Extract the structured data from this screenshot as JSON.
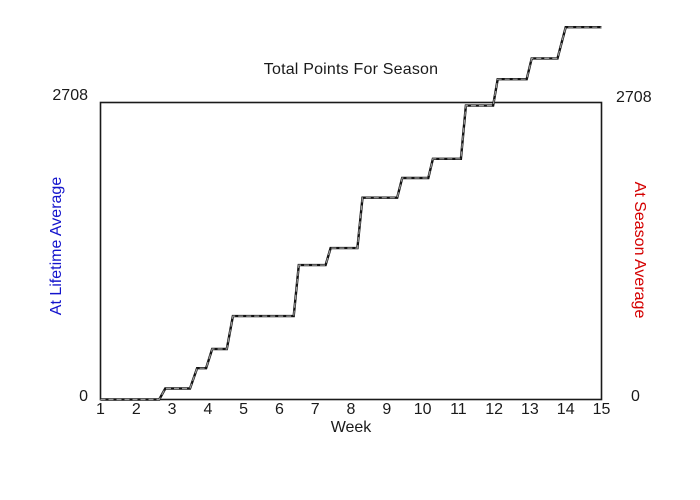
{
  "chart_data": {
    "type": "line",
    "subtype": "step-cumulative",
    "title": "Total Points For Season",
    "xlabel": "Week",
    "x_ticks": [
      "1",
      "2",
      "3",
      "4",
      "5",
      "6",
      "7",
      "8",
      "9",
      "10",
      "11",
      "12",
      "13",
      "14",
      "15"
    ],
    "xlim": [
      1,
      15
    ],
    "ylim": [
      0,
      2708
    ],
    "grid": false,
    "legend": "none",
    "plot_frame": true,
    "line_clipped_to_axes": false,
    "line_color": "#111111",
    "line_dash_overlay_color": "#9a9a9a",
    "frame_color": "#1a1a1a",
    "left_axis": {
      "title": "At Lifetime Average",
      "color": "#1414cc",
      "max_label": "2708",
      "min_label": "0"
    },
    "right_axis": {
      "title": "At Season Average",
      "color": "#d40000",
      "max_label": "2708",
      "min_label": "0"
    },
    "points": [
      [
        1.0,
        0
      ],
      [
        2.64,
        0
      ],
      [
        2.81,
        100
      ],
      [
        3.5,
        100
      ],
      [
        3.7,
        285
      ],
      [
        3.95,
        285
      ],
      [
        4.12,
        460
      ],
      [
        4.53,
        460
      ],
      [
        4.7,
        760
      ],
      [
        6.4,
        760
      ],
      [
        6.54,
        1225
      ],
      [
        7.29,
        1225
      ],
      [
        7.43,
        1380
      ],
      [
        8.18,
        1380
      ],
      [
        8.32,
        1840
      ],
      [
        9.29,
        1840
      ],
      [
        9.43,
        2020
      ],
      [
        10.16,
        2020
      ],
      [
        10.29,
        2195
      ],
      [
        11.07,
        2195
      ],
      [
        11.21,
        2680
      ],
      [
        11.97,
        2680
      ],
      [
        12.1,
        2920
      ],
      [
        12.91,
        2920
      ],
      [
        13.05,
        3110
      ],
      [
        13.77,
        3110
      ],
      [
        14.0,
        3395
      ],
      [
        15.0,
        3395
      ]
    ]
  }
}
